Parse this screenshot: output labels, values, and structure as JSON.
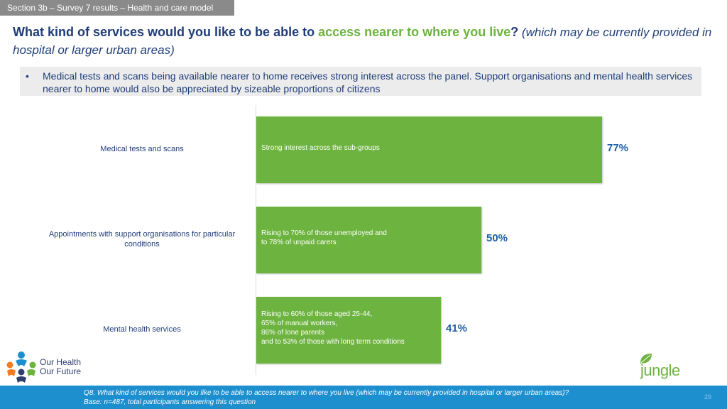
{
  "section_tab": "Section 3b – Survey 7 results – Health and care model",
  "title": {
    "part1": "What kind of services would you like to be able to ",
    "part2": "access nearer to where you live",
    "part3": "?",
    "part4": " (which may be currently provided in hospital or larger urban areas)"
  },
  "summary": {
    "bullet": "•",
    "text": "Medical tests and scans being available nearer to home receives strong interest across the panel. Support organisations and mental health services nearer to home would also be appreciated by sizeable proportions of citizens"
  },
  "chart_data": {
    "type": "bar",
    "orientation": "horizontal",
    "categories": [
      "Medical tests and scans",
      "Appointments with support organisations for particular conditions",
      "Mental health services"
    ],
    "values": [
      77,
      50,
      41
    ],
    "value_labels": [
      "77%",
      "50%",
      "41%"
    ],
    "bar_notes": [
      "Strong interest across the sub-groups",
      "Rising to 70% of those unemployed and\nto 78% of unpaid carers",
      "Rising to 60% of those aged 25-44,\n65% of manual workers,\n86% of lone parents\nand to 53% of those with long term conditions"
    ],
    "xlim": [
      0,
      100
    ],
    "bar_color": "#6db33f",
    "grid": false
  },
  "footer": {
    "question": "Q8. What kind of services would you like to be able to access nearer to where you live (which may be currently provided in hospital or larger urban areas)?",
    "base": "Base: n=487, total participants answering this question",
    "page_number": "29"
  },
  "logos": {
    "left_line1": "Our Health",
    "left_line2": "Our Future",
    "right": "jungle green"
  },
  "colors": {
    "heading": "#1f3d7a",
    "accent_green": "#6db33f",
    "value_blue": "#1f5fa8",
    "footer_blue": "#1d8fcf",
    "tab_grey": "#8a8a8a"
  }
}
